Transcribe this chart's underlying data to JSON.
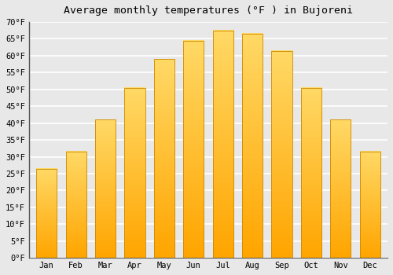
{
  "title": "Average monthly temperatures (°F ) in Bujoreni",
  "months": [
    "Jan",
    "Feb",
    "Mar",
    "Apr",
    "May",
    "Jun",
    "Jul",
    "Aug",
    "Sep",
    "Oct",
    "Nov",
    "Dec"
  ],
  "values": [
    26.5,
    31.5,
    41.0,
    50.5,
    59.0,
    64.5,
    67.5,
    66.5,
    61.5,
    50.5,
    41.0,
    31.5
  ],
  "bar_color_top": "#FFD966",
  "bar_color_bottom": "#FFA500",
  "bar_edge_color": "#CC8800",
  "background_color": "#e8e8e8",
  "plot_background": "#e8e8e8",
  "ylim": [
    0,
    70
  ],
  "title_fontsize": 9.5,
  "tick_fontsize": 7.5,
  "grid_color": "#ffffff",
  "grid_linewidth": 1.2,
  "left_spine_color": "#555555"
}
